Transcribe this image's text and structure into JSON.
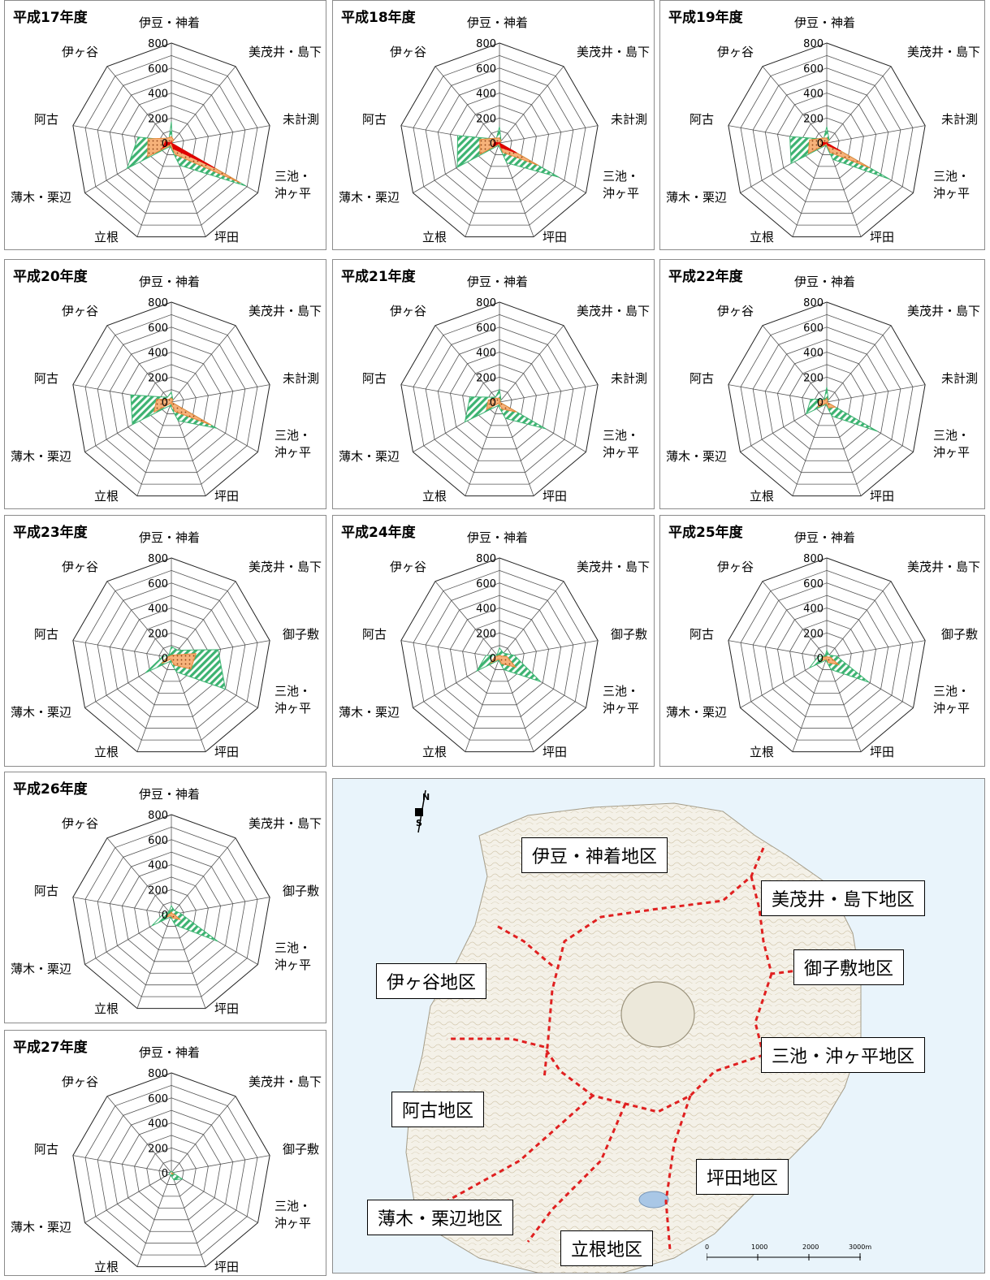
{
  "tick_labels": [
    "0",
    "200",
    "400",
    "600",
    "800"
  ],
  "chart_data": [
    {
      "type": "radar",
      "title": "平成17年度",
      "axes": [
        "伊豆・神着",
        "美茂井・島下",
        "未計測",
        "三池・沖ヶ平",
        "坪田",
        "立根",
        "薄木・栗辺",
        "阿古",
        "伊ヶ谷"
      ],
      "ylim": [
        0,
        800
      ],
      "series": [
        {
          "values": [
            170,
            10,
            0,
            690,
            190,
            30,
            410,
            270,
            30
          ]
        },
        {
          "values": [
            50,
            30,
            0,
            640,
            100,
            20,
            220,
            190,
            50
          ]
        },
        {
          "values": [
            20,
            0,
            0,
            400,
            50,
            0,
            80,
            50,
            0
          ]
        }
      ]
    },
    {
      "type": "radar",
      "title": "平成18年度",
      "axes": [
        "伊豆・神着",
        "美茂井・島下",
        "未計測",
        "三池・沖ヶ平",
        "坪田",
        "立根",
        "薄木・栗辺",
        "阿古",
        "伊ヶ谷"
      ],
      "ylim": [
        0,
        800
      ],
      "series": [
        {
          "values": [
            130,
            20,
            0,
            550,
            170,
            20,
            390,
            340,
            40
          ]
        },
        {
          "values": [
            40,
            20,
            0,
            360,
            80,
            10,
            180,
            160,
            50
          ]
        },
        {
          "values": [
            10,
            0,
            0,
            160,
            40,
            0,
            60,
            40,
            0
          ]
        }
      ]
    },
    {
      "type": "radar",
      "title": "平成19年度",
      "axes": [
        "伊豆・神着",
        "美茂井・島下",
        "未計測",
        "三池・沖ヶ平",
        "坪田",
        "立根",
        "薄木・栗辺",
        "阿古",
        "伊ヶ谷"
      ],
      "ylim": [
        0,
        800
      ],
      "series": [
        {
          "values": [
            130,
            30,
            0,
            580,
            140,
            20,
            330,
            300,
            40
          ]
        },
        {
          "values": [
            40,
            20,
            0,
            400,
            80,
            10,
            170,
            140,
            50
          ]
        },
        {
          "values": [
            10,
            0,
            0,
            130,
            20,
            0,
            50,
            30,
            0
          ]
        }
      ]
    },
    {
      "type": "radar",
      "title": "平成20年度",
      "axes": [
        "伊豆・神着",
        "美茂井・島下",
        "未計測",
        "三池・沖ヶ平",
        "坪田",
        "立根",
        "薄木・栗辺",
        "阿古",
        "伊ヶ谷"
      ],
      "ylim": [
        0,
        800
      ],
      "series": [
        {
          "values": [
            80,
            20,
            0,
            420,
            160,
            30,
            360,
            330,
            50
          ]
        },
        {
          "values": [
            30,
            20,
            0,
            370,
            80,
            10,
            160,
            120,
            30
          ]
        }
      ]
    },
    {
      "type": "radar",
      "title": "平成21年度",
      "axes": [
        "伊豆・神着",
        "美茂井・島下",
        "未計測",
        "三池・沖ヶ平",
        "坪田",
        "立根",
        "薄木・栗辺",
        "阿古",
        "伊ヶ谷"
      ],
      "ylim": [
        0,
        800
      ],
      "series": [
        {
          "values": [
            100,
            20,
            0,
            430,
            140,
            30,
            320,
            240,
            50
          ]
        },
        {
          "values": [
            30,
            10,
            0,
            160,
            60,
            10,
            120,
            90,
            40
          ]
        }
      ]
    },
    {
      "type": "radar",
      "title": "平成22年度",
      "axes": [
        "伊豆・神着",
        "美茂井・島下",
        "未計測",
        "三池・沖ヶ平",
        "坪田",
        "立根",
        "薄木・栗辺",
        "阿古",
        "伊ヶ谷"
      ],
      "ylim": [
        0,
        800
      ],
      "series": [
        {
          "values": [
            120,
            20,
            0,
            470,
            120,
            20,
            190,
            130,
            30
          ]
        },
        {
          "values": [
            30,
            10,
            0,
            80,
            50,
            10,
            80,
            60,
            20
          ]
        }
      ]
    },
    {
      "type": "radar",
      "title": "平成23年度",
      "axes": [
        "伊豆・神着",
        "美茂井・島下",
        "御子敷",
        "三池・沖ヶ平",
        "坪田",
        "立根",
        "薄木・栗辺",
        "阿古",
        "伊ヶ谷"
      ],
      "ylim": [
        0,
        800
      ],
      "series": [
        {
          "values": [
            90,
            80,
            380,
            500,
            120,
            30,
            240,
            70,
            30
          ]
        },
        {
          "values": [
            20,
            30,
            200,
            180,
            60,
            10,
            90,
            30,
            20
          ]
        }
      ]
    },
    {
      "type": "radar",
      "title": "平成24年度",
      "axes": [
        "伊豆・神着",
        "美茂井・島下",
        "御子敷",
        "三池・沖ヶ平",
        "坪田",
        "立根",
        "薄木・栗辺",
        "阿古",
        "伊ヶ谷"
      ],
      "ylim": [
        0,
        800
      ],
      "series": [
        {
          "values": [
            80,
            50,
            120,
            380,
            100,
            20,
            210,
            110,
            30
          ]
        },
        {
          "values": [
            20,
            20,
            60,
            150,
            50,
            10,
            80,
            40,
            20
          ]
        }
      ]
    },
    {
      "type": "radar",
      "title": "平成25年度",
      "axes": [
        "伊豆・神着",
        "美茂井・島下",
        "御子敷",
        "三池・沖ヶ平",
        "坪田",
        "立根",
        "薄木・栗辺",
        "阿古",
        "伊ヶ谷"
      ],
      "ylim": [
        0,
        800
      ],
      "series": [
        {
          "values": [
            60,
            30,
            80,
            390,
            100,
            20,
            160,
            70,
            20
          ]
        },
        {
          "values": [
            10,
            10,
            30,
            110,
            40,
            10,
            50,
            30,
            10
          ]
        }
      ]
    },
    {
      "type": "radar",
      "title": "平成26年度",
      "axes": [
        "伊豆・神着",
        "美茂井・島下",
        "御子敷",
        "三池・沖ヶ平",
        "坪田",
        "立根",
        "薄木・栗辺",
        "阿古",
        "伊ヶ谷"
      ],
      "ylim": [
        0,
        800
      ],
      "series": [
        {
          "values": [
            70,
            40,
            70,
            430,
            90,
            20,
            180,
            60,
            30
          ]
        },
        {
          "values": [
            20,
            10,
            20,
            80,
            30,
            10,
            40,
            20,
            10
          ]
        }
      ]
    },
    {
      "type": "radar",
      "title": "平成27年度",
      "axes": [
        "伊豆・神着",
        "美茂井・島下",
        "御子敷",
        "三池・沖ヶ平",
        "坪田",
        "立根",
        "薄木・栗辺",
        "阿古",
        "伊ヶ谷"
      ],
      "ylim": [
        0,
        800
      ],
      "series": [
        {
          "values": [
            10,
            10,
            10,
            100,
            60,
            20,
            20,
            10,
            10
          ]
        },
        {
          "values": [
            0,
            0,
            0,
            20,
            10,
            0,
            0,
            0,
            0
          ]
        }
      ]
    }
  ],
  "map": {
    "labels": [
      "伊豆・神着地区",
      "美茂井・島下地区",
      "御子敷地区",
      "伊ヶ谷地区",
      "三池・沖ヶ平地区",
      "阿古地区",
      "坪田地区",
      "薄木・栗辺地区",
      "立根地区"
    ],
    "compass": [
      "N",
      "S"
    ],
    "scale_labels": [
      "0",
      "1000",
      "2000",
      "3000m"
    ]
  },
  "colors": {
    "series1": "#3cb371",
    "series2": "#e8883a",
    "series3": "#e00000"
  }
}
